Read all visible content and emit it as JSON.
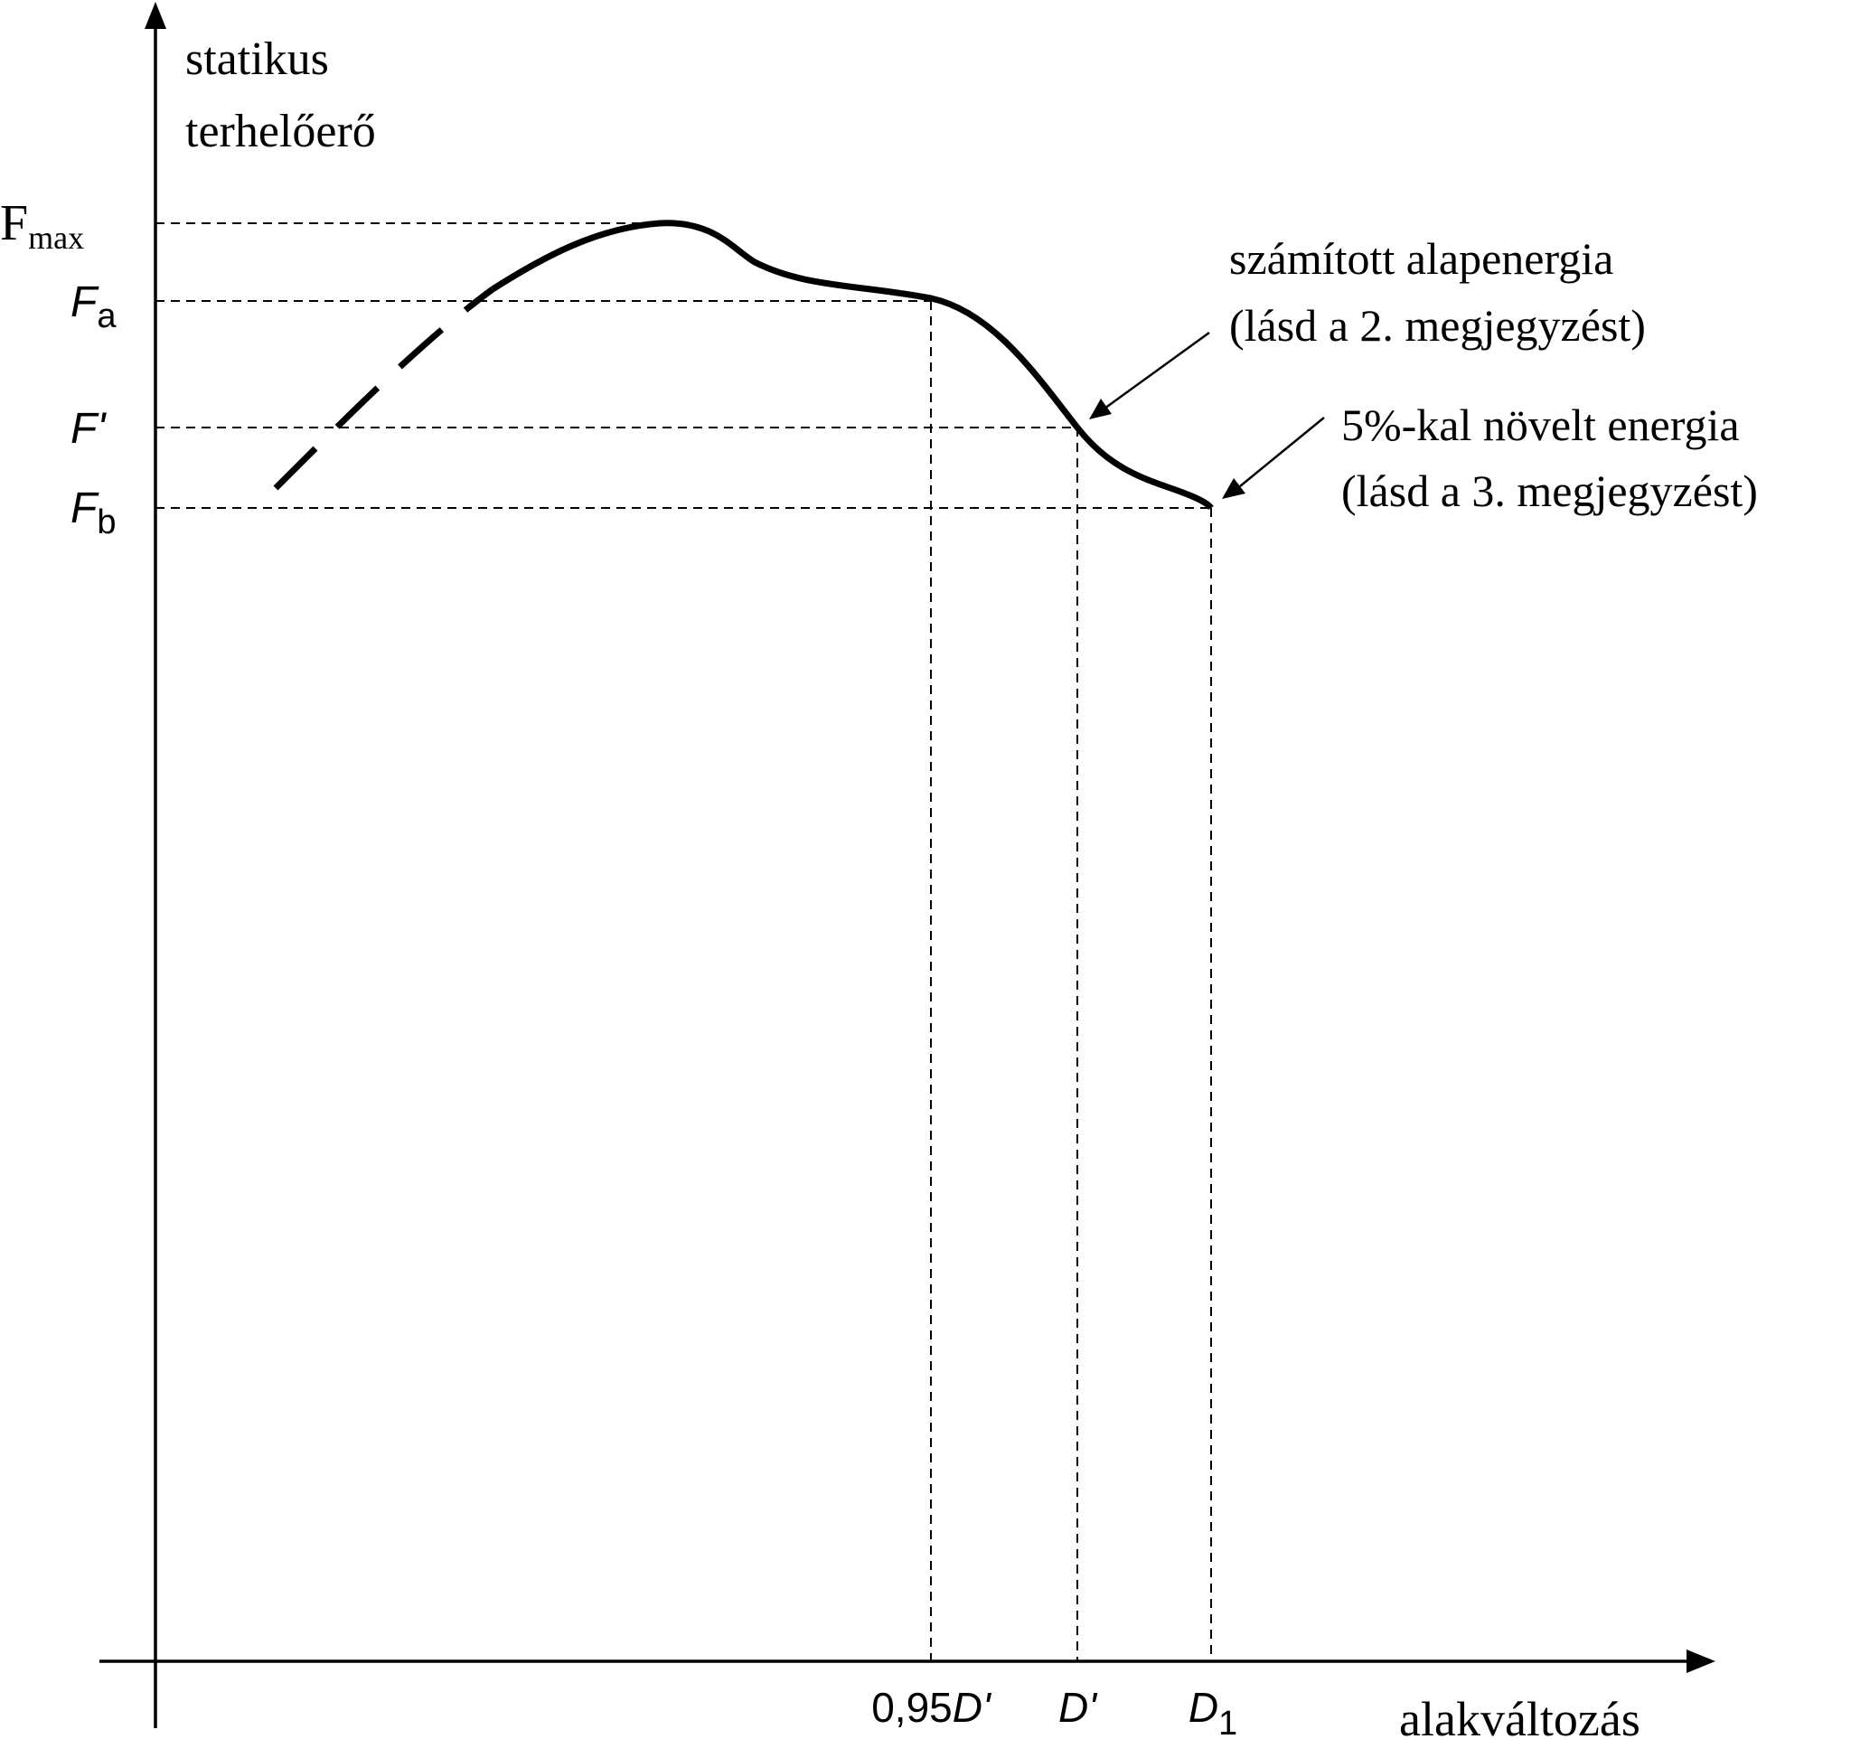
{
  "chart_data": {
    "type": "line",
    "ylabel_line1": "statikus",
    "ylabel_line2": "terhelőerő",
    "xlabel": "alakváltozás",
    "y_levels": [
      {
        "key": "fmax",
        "main": "F",
        "sub": "max",
        "italic": false
      },
      {
        "key": "fa",
        "main": "F",
        "sub": "a",
        "italic": true
      },
      {
        "key": "fprime",
        "main": "F'",
        "sub": "",
        "italic": true
      },
      {
        "key": "fb",
        "main": "F",
        "sub": "b",
        "italic": true
      }
    ],
    "x_ticks": [
      {
        "key": "d095",
        "prefix": "0,95",
        "main": "D'",
        "sub": ""
      },
      {
        "key": "dprime",
        "prefix": "",
        "main": "D'",
        "sub": ""
      },
      {
        "key": "d1",
        "prefix": "",
        "main": "D",
        "sub": "1"
      }
    ],
    "annotations": [
      {
        "key": "alapenergia",
        "line1": "számított alapenergia",
        "line2": "(lásd a 2. megjegyzést)",
        "points_to": "dprime"
      },
      {
        "key": "novelt",
        "line1": "5%-kal növelt energia",
        "line2": "(lásd a 3. megjegyzést)",
        "points_to": "d1"
      }
    ],
    "curve": {
      "dashed_segment": "initial rise (before Fa)",
      "solid_segment": "from near Fa through Fmax, Fa at 0.95D', F' at D', ending at Fb at D1"
    }
  }
}
